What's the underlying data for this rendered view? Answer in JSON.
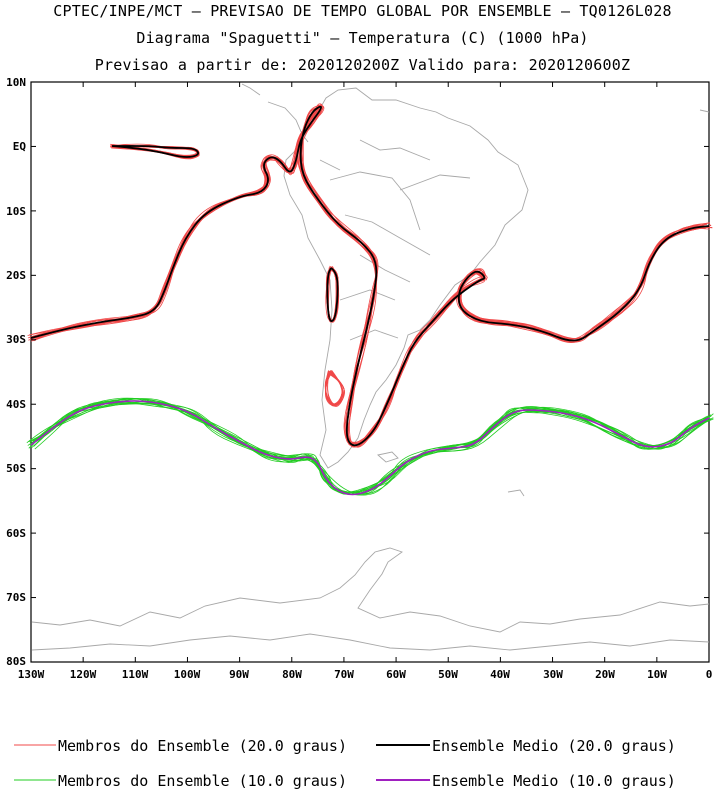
{
  "header": {
    "line1": "CPTEC/INPE/MCT – PREVISAO DE TEMPO GLOBAL POR ENSEMBLE – TQ0126L028",
    "line2": "Diagrama \"Spaguetti\" – Temperatura (C) (1000 hPa)",
    "line3": "Previsao a partir de: 2020120200Z  Valido para: 2020120600Z"
  },
  "map": {
    "lat_labels": [
      "10N",
      "EQ",
      "10S",
      "20S",
      "30S",
      "40S",
      "50S",
      "60S",
      "70S",
      "80S"
    ],
    "lon_labels": [
      "130W",
      "120W",
      "110W",
      "100W",
      "90W",
      "80W",
      "70W",
      "60W",
      "50W",
      "40W",
      "30W",
      "20W",
      "10W",
      "0"
    ],
    "lat_range": [
      -80,
      10
    ],
    "lon_range": [
      -130,
      0
    ],
    "colors": {
      "member_20": "#f04848",
      "mean_20": "#000000",
      "member_10": "#22cc22",
      "mean_10": "#a020c0",
      "coast": "#a8a8a8"
    }
  },
  "legend": {
    "members_20": "Membros do Ensemble (20.0 graus)",
    "mean_20": "Ensemble Medio (20.0 graus)",
    "members_10": "Membros do Ensemble (10.0 graus)",
    "mean_10": "Ensemble Medio (10.0 graus)"
  }
}
